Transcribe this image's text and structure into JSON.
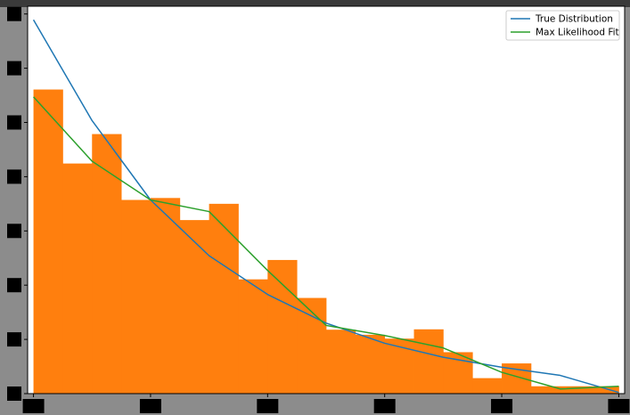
{
  "chart_data": {
    "type": "bar",
    "title": "",
    "xlabel": "",
    "ylabel": "",
    "xlim": [
      -0.05,
      5.05
    ],
    "ylim": [
      0,
      1.0
    ],
    "xticks": [
      0,
      1,
      2,
      3,
      4,
      5
    ],
    "yticks": [
      0,
      0.14,
      0.28,
      0.42,
      0.56,
      0.7,
      0.84,
      0.98
    ],
    "bin_width": 0.25,
    "histogram": {
      "color": "#ff7f0e",
      "bin_starts": [
        0,
        0.25,
        0.5,
        0.75,
        1.0,
        1.25,
        1.5,
        1.75,
        2.0,
        2.25,
        2.5,
        2.75,
        3.0,
        3.25,
        3.5,
        3.75,
        4.0,
        4.25,
        4.5,
        4.75
      ],
      "values": [
        0.785,
        0.594,
        0.67,
        0.5,
        0.505,
        0.448,
        0.49,
        0.295,
        0.345,
        0.247,
        0.165,
        0.152,
        0.142,
        0.166,
        0.107,
        0.04,
        0.078,
        0.019,
        0.019,
        0.019
      ]
    },
    "series": [
      {
        "name": "True Distribution",
        "type": "line",
        "color": "#1f77b4",
        "x": [
          0,
          0.5,
          1.0,
          1.5,
          2.0,
          2.5,
          3.0,
          3.5,
          4.0,
          4.5,
          5.0
        ],
        "y": [
          0.965,
          0.705,
          0.5,
          0.356,
          0.256,
          0.182,
          0.13,
          0.094,
          0.068,
          0.047,
          0.003
        ]
      },
      {
        "name": "Max Likelihood Fit",
        "type": "line",
        "color": "#2ca02c",
        "x": [
          0,
          0.5,
          1.0,
          1.5,
          2.0,
          2.5,
          3.0,
          3.5,
          4.0,
          4.5,
          5.0
        ],
        "y": [
          0.766,
          0.6,
          0.5,
          0.47,
          0.318,
          0.176,
          0.15,
          0.118,
          0.055,
          0.012,
          0.019
        ]
      }
    ],
    "legend": {
      "placement": "top-right",
      "entries": [
        "True Distribution",
        "Max Likelihood Fit"
      ]
    }
  }
}
